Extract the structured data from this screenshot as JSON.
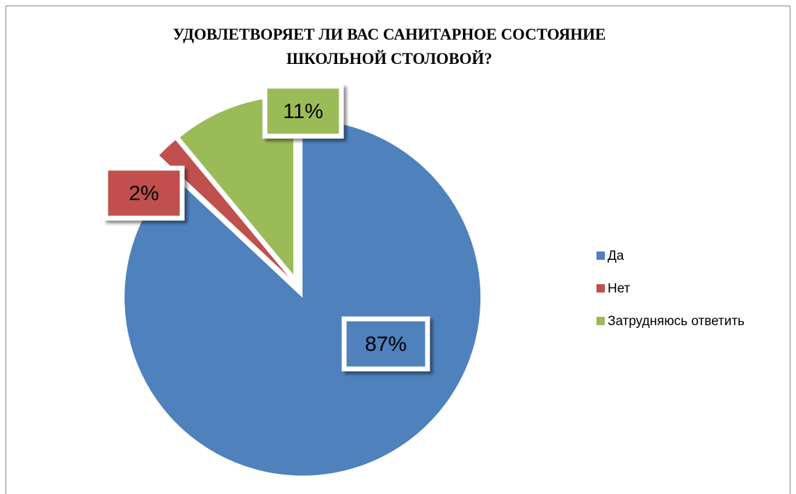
{
  "chart_data": {
    "type": "pie",
    "title": "УДОВЛЕТВОРЯЕТ ЛИ ВАС САНИТАРНОЕ СОСТОЯНИЕ ШКОЛЬНОЙ СТОЛОВОЙ?",
    "categories": [
      "Да",
      "Нет",
      "Затрудняюсь ответить"
    ],
    "values": [
      87,
      2,
      11
    ],
    "value_labels": [
      "87%",
      "2%",
      "11%"
    ],
    "colors": [
      "#4f81bd",
      "#c0504d",
      "#9bbb59"
    ],
    "legend": "right"
  }
}
